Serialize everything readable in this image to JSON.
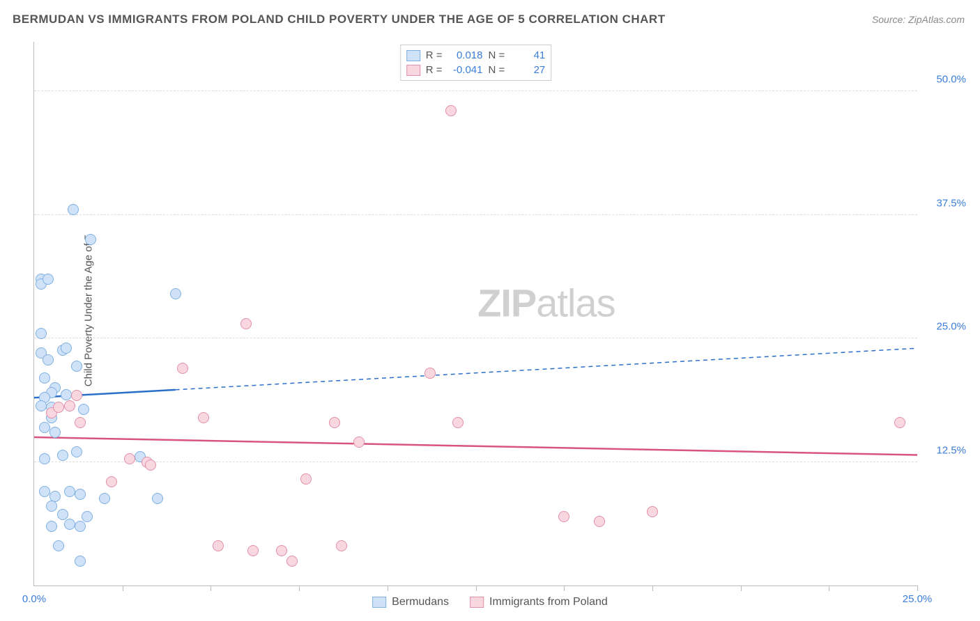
{
  "title": "BERMUDAN VS IMMIGRANTS FROM POLAND CHILD POVERTY UNDER THE AGE OF 5 CORRELATION CHART",
  "source": "Source: ZipAtlas.com",
  "ylabel": "Child Poverty Under the Age of 5",
  "watermark_zip": "ZIP",
  "watermark_atlas": "atlas",
  "chart": {
    "type": "scatter",
    "xlim": [
      0,
      25
    ],
    "ylim": [
      0,
      55
    ],
    "yticks": [
      {
        "v": 12.5,
        "label": "12.5%"
      },
      {
        "v": 25.0,
        "label": "25.0%"
      },
      {
        "v": 37.5,
        "label": "37.5%"
      },
      {
        "v": 50.0,
        "label": "50.0%"
      }
    ],
    "xticks_minor": [
      2.5,
      5,
      7.5,
      10,
      12.5,
      15,
      17.5,
      20,
      22.5,
      25
    ],
    "xtick_labels": [
      {
        "v": 0,
        "label": "0.0%"
      },
      {
        "v": 25,
        "label": "25.0%"
      }
    ],
    "background_color": "#ffffff",
    "grid_color": "#dddddd",
    "marker_radius": 8,
    "marker_stroke_width": 1.5,
    "series": [
      {
        "name": "Bermudans",
        "fill": "#cfe2f7",
        "stroke": "#7fb0e3",
        "line_color": "#2a6fc9",
        "r": "0.018",
        "n": "41",
        "trend": {
          "y0": 19.0,
          "y1": 24.0,
          "x_solid_end": 4.0
        },
        "points": [
          [
            0.2,
            31.0
          ],
          [
            0.2,
            30.5
          ],
          [
            0.4,
            31.0
          ],
          [
            0.2,
            25.5
          ],
          [
            0.2,
            23.5
          ],
          [
            0.8,
            23.8
          ],
          [
            0.4,
            22.8
          ],
          [
            0.3,
            21.0
          ],
          [
            0.6,
            20.0
          ],
          [
            0.5,
            19.5
          ],
          [
            0.3,
            19.0
          ],
          [
            0.9,
            19.3
          ],
          [
            0.2,
            18.2
          ],
          [
            0.5,
            18.0
          ],
          [
            0.5,
            17.0
          ],
          [
            0.3,
            16.0
          ],
          [
            0.6,
            15.5
          ],
          [
            0.8,
            13.2
          ],
          [
            1.2,
            13.5
          ],
          [
            0.3,
            12.8
          ],
          [
            0.3,
            9.5
          ],
          [
            0.6,
            9.0
          ],
          [
            1.0,
            9.5
          ],
          [
            1.3,
            9.2
          ],
          [
            0.5,
            8.0
          ],
          [
            0.8,
            7.2
          ],
          [
            0.5,
            6.0
          ],
          [
            1.0,
            6.2
          ],
          [
            1.3,
            6.0
          ],
          [
            0.7,
            4.0
          ],
          [
            1.3,
            2.5
          ],
          [
            1.1,
            38.0
          ],
          [
            1.4,
            17.8
          ],
          [
            1.5,
            7.0
          ],
          [
            1.6,
            35.0
          ],
          [
            2.0,
            8.8
          ],
          [
            3.0,
            13.0
          ],
          [
            1.2,
            22.2
          ],
          [
            3.5,
            8.8
          ],
          [
            4.0,
            29.5
          ],
          [
            0.9,
            24.0
          ]
        ]
      },
      {
        "name": "Immigrants from Poland",
        "fill": "#f8d7e0",
        "stroke": "#e28fa8",
        "line_color": "#d8547d",
        "r": "-0.041",
        "n": "27",
        "trend": {
          "y0": 15.0,
          "y1": 13.2,
          "x_solid_end": 25.0
        },
        "points": [
          [
            0.5,
            17.5
          ],
          [
            0.7,
            18.0
          ],
          [
            1.0,
            18.2
          ],
          [
            1.2,
            19.2
          ],
          [
            1.3,
            16.5
          ],
          [
            2.2,
            10.5
          ],
          [
            2.7,
            12.8
          ],
          [
            3.2,
            12.5
          ],
          [
            3.3,
            12.2
          ],
          [
            4.2,
            22.0
          ],
          [
            4.8,
            17.0
          ],
          [
            5.2,
            4.0
          ],
          [
            6.0,
            26.5
          ],
          [
            6.2,
            3.5
          ],
          [
            7.0,
            3.5
          ],
          [
            7.3,
            2.5
          ],
          [
            7.7,
            10.8
          ],
          [
            8.5,
            16.5
          ],
          [
            8.7,
            4.0
          ],
          [
            9.2,
            14.5
          ],
          [
            11.2,
            21.5
          ],
          [
            11.8,
            48.0
          ],
          [
            12.0,
            16.5
          ],
          [
            15.0,
            7.0
          ],
          [
            16.0,
            6.5
          ],
          [
            17.5,
            7.5
          ],
          [
            24.5,
            16.5
          ]
        ]
      }
    ]
  },
  "stats_labels": {
    "r": "R =",
    "n": "N ="
  },
  "bottom_legend": [
    {
      "label": "Bermudans",
      "fill": "#cfe2f7",
      "stroke": "#7fb0e3"
    },
    {
      "label": "Immigrants from Poland",
      "fill": "#f8d7e0",
      "stroke": "#e28fa8"
    }
  ]
}
